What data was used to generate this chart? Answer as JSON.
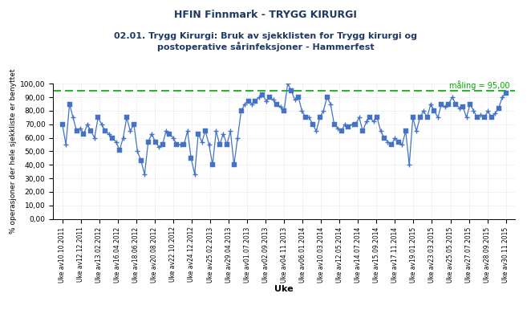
{
  "title1": "HFIN Finnmark - TRYGG KIRURGI",
  "title2": "02.01. Trygg Kirurgi: Bruk av sjekklisten for Trygg kirurgi og\npostoperative sårinfeksjoner - Hammerfest",
  "xlabel": "Uke",
  "ylabel": "% operasjoner der hele sjekkliste er benyttet",
  "target_value": 95.0,
  "target_label": "måling = 95,00",
  "ylim": [
    0,
    100
  ],
  "yticks": [
    0,
    10,
    20,
    30,
    40,
    50,
    60,
    70,
    80,
    90,
    100
  ],
  "ytick_labels": [
    "0,00",
    "10,00",
    "20,00",
    "30,00",
    "40,00",
    "50,00",
    "60,00",
    "70,00",
    "80,00",
    "90,00",
    "100,00"
  ],
  "x_labels": [
    "Uke av10.10.2011",
    "Uke av12.12.2011",
    "Uke av13.02.2012",
    "Uke av16.04.2012",
    "Uke av18.06.2012",
    "Uke av20.08.2012",
    "Uke av22.10.2012",
    "Uke av24.12.2012",
    "Uke av25.02.2013",
    "Uke av29.04.2013",
    "Uke av01.07.2013",
    "Uke av02.09.2013",
    "Uke av04.11.2013",
    "Uke av06.01.2014",
    "Uke av10.03.2014",
    "Uke av12.05.2014",
    "Uke av14.07.2014",
    "Uke av15.09.2014",
    "Uke av17.11.2014",
    "Uke av19.01.2015",
    "Uke av23.03.2015",
    "Uke av25.05.2015",
    "Uke av27.07.2015",
    "Uke av28.09.2015",
    "Uke av30.11.2015"
  ],
  "line_color": "#4472C4",
  "marker_sq_color": "#4472C4",
  "target_line_color": "#00AA00",
  "background_color": "#FFFFFF",
  "grid_color": "#C0C0C0",
  "title_color": "#1F3864",
  "values": [
    70,
    55,
    85,
    75,
    65,
    67,
    63,
    70,
    65,
    60,
    75,
    70,
    65,
    63,
    60,
    57,
    51,
    60,
    75,
    65,
    70,
    50,
    43,
    33,
    57,
    63,
    57,
    53,
    55,
    65,
    63,
    60,
    55,
    55,
    55,
    65,
    45,
    33,
    63,
    57,
    65,
    55,
    40,
    65,
    55,
    63,
    55,
    65,
    40,
    60,
    80,
    85,
    87,
    85,
    87,
    90,
    92,
    87,
    90,
    88,
    85,
    83,
    80,
    100,
    95,
    88,
    90,
    80,
    75,
    75,
    70,
    65,
    75,
    80,
    90,
    85,
    70,
    67,
    65,
    70,
    68,
    70,
    70,
    75,
    65,
    72,
    75,
    72,
    75,
    65,
    60,
    57,
    55,
    60,
    57,
    55,
    65,
    40,
    75,
    65,
    75,
    80,
    75,
    85,
    80,
    75,
    85,
    83,
    85,
    90,
    85,
    82,
    83,
    75,
    85,
    80,
    75,
    77,
    75,
    80,
    75,
    78,
    82,
    90,
    93
  ],
  "figsize": [
    6.62,
    4.01
  ],
  "dpi": 100
}
